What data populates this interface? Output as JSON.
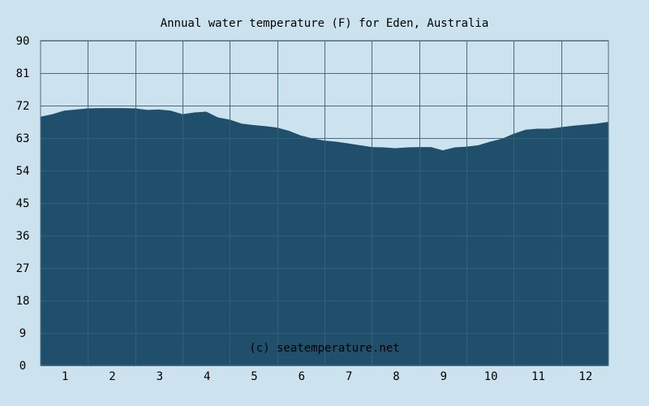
{
  "chart_data": {
    "type": "area",
    "title": "Annual water temperature (F) for Eden, Australia",
    "xlabel": "",
    "ylabel": "",
    "ylim": [
      0,
      90
    ],
    "y_ticks": [
      "0",
      "9",
      "18",
      "27",
      "36",
      "45",
      "54",
      "63",
      "72",
      "81",
      "90"
    ],
    "x_ticks": [
      "1",
      "2",
      "3",
      "4",
      "5",
      "6",
      "7",
      "8",
      "9",
      "10",
      "11",
      "12"
    ],
    "xlim": [
      0.5,
      12.5
    ],
    "grid": true,
    "watermark": "(c) seatemperature.net",
    "colors": {
      "background": "#cce3ef",
      "fill": "#1f4f6b",
      "grid": "#4a6b82",
      "plot_bg": "#cce3ef"
    },
    "x": [
      0.5,
      0.75,
      1.0,
      1.25,
      1.5,
      1.75,
      2.0,
      2.25,
      2.5,
      2.75,
      3.0,
      3.25,
      3.5,
      3.75,
      4.0,
      4.25,
      4.5,
      4.75,
      5.0,
      5.25,
      5.5,
      5.75,
      6.0,
      6.25,
      6.5,
      6.75,
      7.0,
      7.25,
      7.5,
      7.75,
      8.0,
      8.25,
      8.5,
      8.75,
      9.0,
      9.25,
      9.5,
      9.75,
      10.0,
      10.25,
      10.5,
      10.75,
      11.0,
      11.25,
      11.5,
      11.75,
      12.0,
      12.25,
      12.5
    ],
    "values": [
      68.9,
      69.6,
      70.6,
      70.9,
      71.2,
      71.3,
      71.3,
      71.3,
      71.2,
      70.8,
      70.9,
      70.6,
      69.6,
      70.1,
      70.3,
      68.7,
      68.1,
      67.0,
      66.6,
      66.3,
      65.9,
      65.0,
      63.7,
      62.9,
      62.3,
      62.0,
      61.5,
      61.0,
      60.5,
      60.4,
      60.2,
      60.4,
      60.5,
      60.5,
      59.6,
      60.4,
      60.6,
      61.0,
      62.0,
      62.8,
      64.2,
      65.3,
      65.6,
      65.6,
      66.0,
      66.4,
      66.7,
      67.0,
      67.5
    ]
  }
}
